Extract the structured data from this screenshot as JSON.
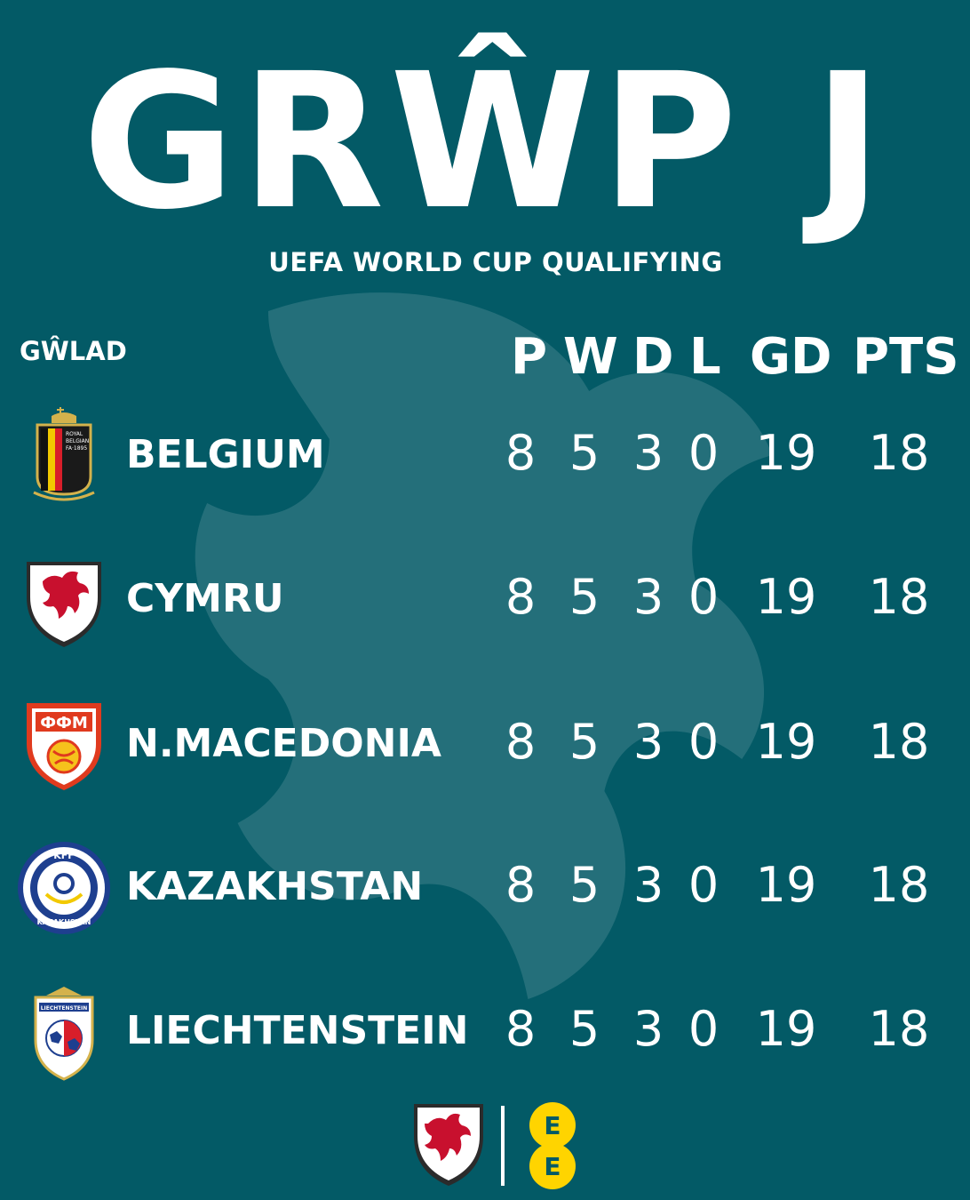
{
  "header": {
    "title": "GRŴP J",
    "subtitle": "UEFA WORLD CUP QUALIFYING"
  },
  "table": {
    "country_header": "GŴLAD",
    "columns": [
      "P",
      "W",
      "D",
      "L",
      "GD",
      "PTS"
    ],
    "rows": [
      {
        "team": "BELGIUM",
        "crest": "belgium-crest",
        "p": "8",
        "w": "5",
        "d": "3",
        "l": "0",
        "gd": "19",
        "pts": "18"
      },
      {
        "team": "CYMRU",
        "crest": "wales-crest",
        "p": "8",
        "w": "5",
        "d": "3",
        "l": "0",
        "gd": "19",
        "pts": "18"
      },
      {
        "team": "N.MACEDONIA",
        "crest": "north-macedonia-crest",
        "p": "8",
        "w": "5",
        "d": "3",
        "l": "0",
        "gd": "19",
        "pts": "18"
      },
      {
        "team": "KAZAKHSTAN",
        "crest": "kazakhstan-crest",
        "p": "8",
        "w": "5",
        "d": "3",
        "l": "0",
        "gd": "19",
        "pts": "18"
      },
      {
        "team": "LIECHTENSTEIN",
        "crest": "liechtenstein-crest",
        "p": "8",
        "w": "5",
        "d": "3",
        "l": "0",
        "gd": "19",
        "pts": "18"
      }
    ]
  },
  "crest_text": {
    "belgium": [
      "ROYAL",
      "BELGIAN",
      "FA·1895"
    ],
    "macedonia": "ФФМ",
    "kazakhstan_top": "KFF",
    "kazakhstan_bottom": "KAZAKHSTAN",
    "liechtenstein": "LIECHTENSTEIN"
  },
  "footer": {
    "sponsor_letters": [
      "E",
      "E"
    ],
    "logos": [
      "fa-wales-logo",
      "ee-logo"
    ]
  },
  "colors": {
    "background": "#035a66",
    "text": "#ffffff",
    "sponsor_yellow": "#ffd400",
    "wales_red": "#c8102e"
  }
}
